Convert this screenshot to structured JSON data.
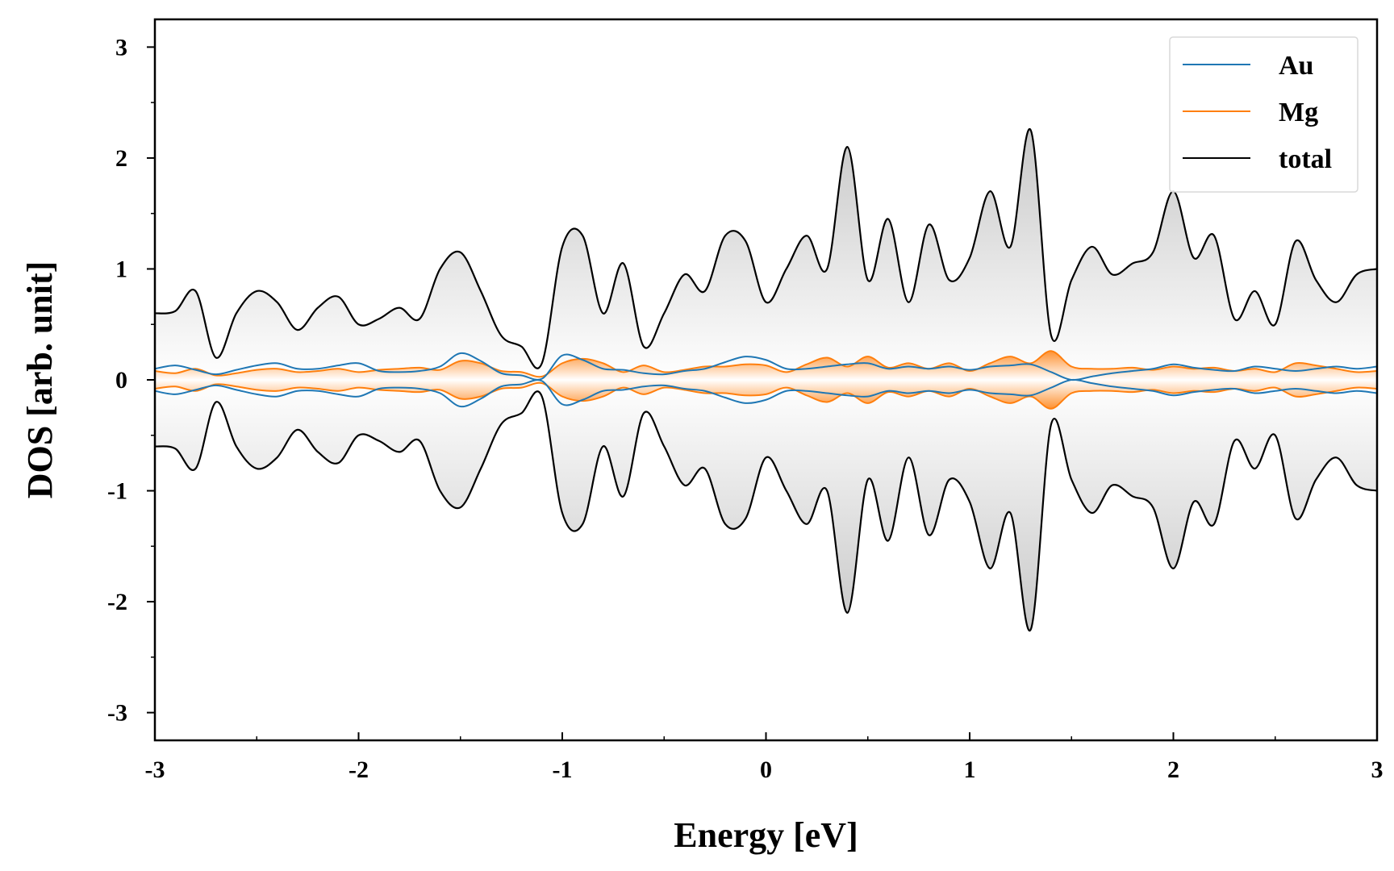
{
  "chart_data": {
    "type": "line",
    "xlabel": "Energy [eV]",
    "ylabel": "DOS [arb. unit]",
    "xlim": [
      -3,
      3
    ],
    "ylim": [
      -3.25,
      3.25
    ],
    "xticks": [
      -3,
      -2,
      -1,
      0,
      1,
      2,
      3
    ],
    "xtick_labels": [
      "-3",
      "-2",
      "-1",
      "0",
      "1",
      "2",
      "3"
    ],
    "yticks": [
      3,
      2,
      1,
      0,
      -1,
      -2,
      -3
    ],
    "ytick_labels": [
      "3",
      "2",
      "1",
      "0",
      "-1",
      "-2",
      "-3"
    ],
    "grid": false,
    "legend_position": "top-right",
    "mirrored": true,
    "series": [
      {
        "name": "Au",
        "color": "#1f77b4",
        "x": [
          -3.0,
          -2.9,
          -2.8,
          -2.7,
          -2.6,
          -2.5,
          -2.4,
          -2.3,
          -2.2,
          -2.1,
          -2.0,
          -1.9,
          -1.8,
          -1.7,
          -1.6,
          -1.5,
          -1.4,
          -1.3,
          -1.2,
          -1.1,
          -1.0,
          -0.9,
          -0.8,
          -0.7,
          -0.6,
          -0.5,
          -0.4,
          -0.3,
          -0.2,
          -0.1,
          0.0,
          0.1,
          0.2,
          0.3,
          0.4,
          0.5,
          0.6,
          0.7,
          0.8,
          0.9,
          1.0,
          1.1,
          1.2,
          1.3,
          1.4,
          1.5,
          1.6,
          1.7,
          1.8,
          1.9,
          2.0,
          2.1,
          2.2,
          2.3,
          2.4,
          2.5,
          2.6,
          2.7,
          2.8,
          2.9,
          3.0
        ],
        "y": [
          0.1,
          0.13,
          0.09,
          0.05,
          0.09,
          0.13,
          0.15,
          0.1,
          0.1,
          0.13,
          0.15,
          0.08,
          0.07,
          0.08,
          0.12,
          0.24,
          0.17,
          0.06,
          0.04,
          0.01,
          0.22,
          0.18,
          0.1,
          0.09,
          0.06,
          0.05,
          0.08,
          0.1,
          0.16,
          0.21,
          0.18,
          0.1,
          0.1,
          0.12,
          0.14,
          0.15,
          0.1,
          0.12,
          0.1,
          0.12,
          0.09,
          0.12,
          0.13,
          0.14,
          0.07,
          0.0,
          0.03,
          0.06,
          0.08,
          0.1,
          0.14,
          0.11,
          0.09,
          0.08,
          0.12,
          0.1,
          0.08,
          0.1,
          0.12,
          0.1,
          0.12
        ]
      },
      {
        "name": "Mg",
        "color": "#ff7f0e",
        "x": [
          -3.0,
          -2.9,
          -2.8,
          -2.7,
          -2.6,
          -2.5,
          -2.4,
          -2.3,
          -2.2,
          -2.1,
          -2.0,
          -1.9,
          -1.8,
          -1.7,
          -1.6,
          -1.5,
          -1.4,
          -1.3,
          -1.2,
          -1.1,
          -1.0,
          -0.9,
          -0.8,
          -0.7,
          -0.6,
          -0.5,
          -0.4,
          -0.3,
          -0.2,
          -0.1,
          0.0,
          0.1,
          0.2,
          0.3,
          0.4,
          0.5,
          0.6,
          0.7,
          0.8,
          0.9,
          1.0,
          1.1,
          1.2,
          1.3,
          1.4,
          1.5,
          1.6,
          1.7,
          1.8,
          1.9,
          2.0,
          2.1,
          2.2,
          2.3,
          2.4,
          2.5,
          2.6,
          2.7,
          2.8,
          2.9,
          3.0
        ],
        "y": [
          0.08,
          0.06,
          0.1,
          0.04,
          0.06,
          0.09,
          0.1,
          0.07,
          0.08,
          0.1,
          0.07,
          0.09,
          0.1,
          0.11,
          0.09,
          0.17,
          0.15,
          0.08,
          0.07,
          0.03,
          0.15,
          0.19,
          0.15,
          0.07,
          0.13,
          0.07,
          0.09,
          0.12,
          0.12,
          0.14,
          0.13,
          0.07,
          0.14,
          0.2,
          0.12,
          0.21,
          0.11,
          0.15,
          0.1,
          0.15,
          0.08,
          0.15,
          0.21,
          0.15,
          0.26,
          0.12,
          0.1,
          0.1,
          0.11,
          0.09,
          0.12,
          0.1,
          0.11,
          0.08,
          0.1,
          0.07,
          0.15,
          0.13,
          0.1,
          0.07,
          0.08
        ]
      },
      {
        "name": "total",
        "color": "#000000",
        "x": [
          -3.0,
          -2.9,
          -2.8,
          -2.7,
          -2.6,
          -2.5,
          -2.4,
          -2.3,
          -2.2,
          -2.1,
          -2.0,
          -1.9,
          -1.8,
          -1.7,
          -1.6,
          -1.5,
          -1.4,
          -1.3,
          -1.2,
          -1.1,
          -1.0,
          -0.9,
          -0.8,
          -0.7,
          -0.6,
          -0.5,
          -0.4,
          -0.3,
          -0.2,
          -0.1,
          0.0,
          0.1,
          0.2,
          0.3,
          0.4,
          0.5,
          0.6,
          0.7,
          0.8,
          0.9,
          1.0,
          1.1,
          1.2,
          1.3,
          1.4,
          1.5,
          1.6,
          1.7,
          1.8,
          1.9,
          2.0,
          2.1,
          2.2,
          2.3,
          2.4,
          2.5,
          2.6,
          2.7,
          2.8,
          2.9,
          3.0
        ],
        "y": [
          0.6,
          0.62,
          0.8,
          0.2,
          0.6,
          0.8,
          0.7,
          0.45,
          0.65,
          0.75,
          0.5,
          0.55,
          0.65,
          0.55,
          1.0,
          1.15,
          0.8,
          0.4,
          0.3,
          0.15,
          1.2,
          1.3,
          0.6,
          1.05,
          0.3,
          0.6,
          0.95,
          0.8,
          1.3,
          1.25,
          0.7,
          1.0,
          1.3,
          1.0,
          2.1,
          0.9,
          1.45,
          0.7,
          1.4,
          0.9,
          1.1,
          1.7,
          1.2,
          2.25,
          0.4,
          0.9,
          1.2,
          0.95,
          1.05,
          1.15,
          1.7,
          1.1,
          1.3,
          0.55,
          0.8,
          0.5,
          1.25,
          0.9,
          0.7,
          0.95,
          1.0
        ]
      }
    ]
  }
}
